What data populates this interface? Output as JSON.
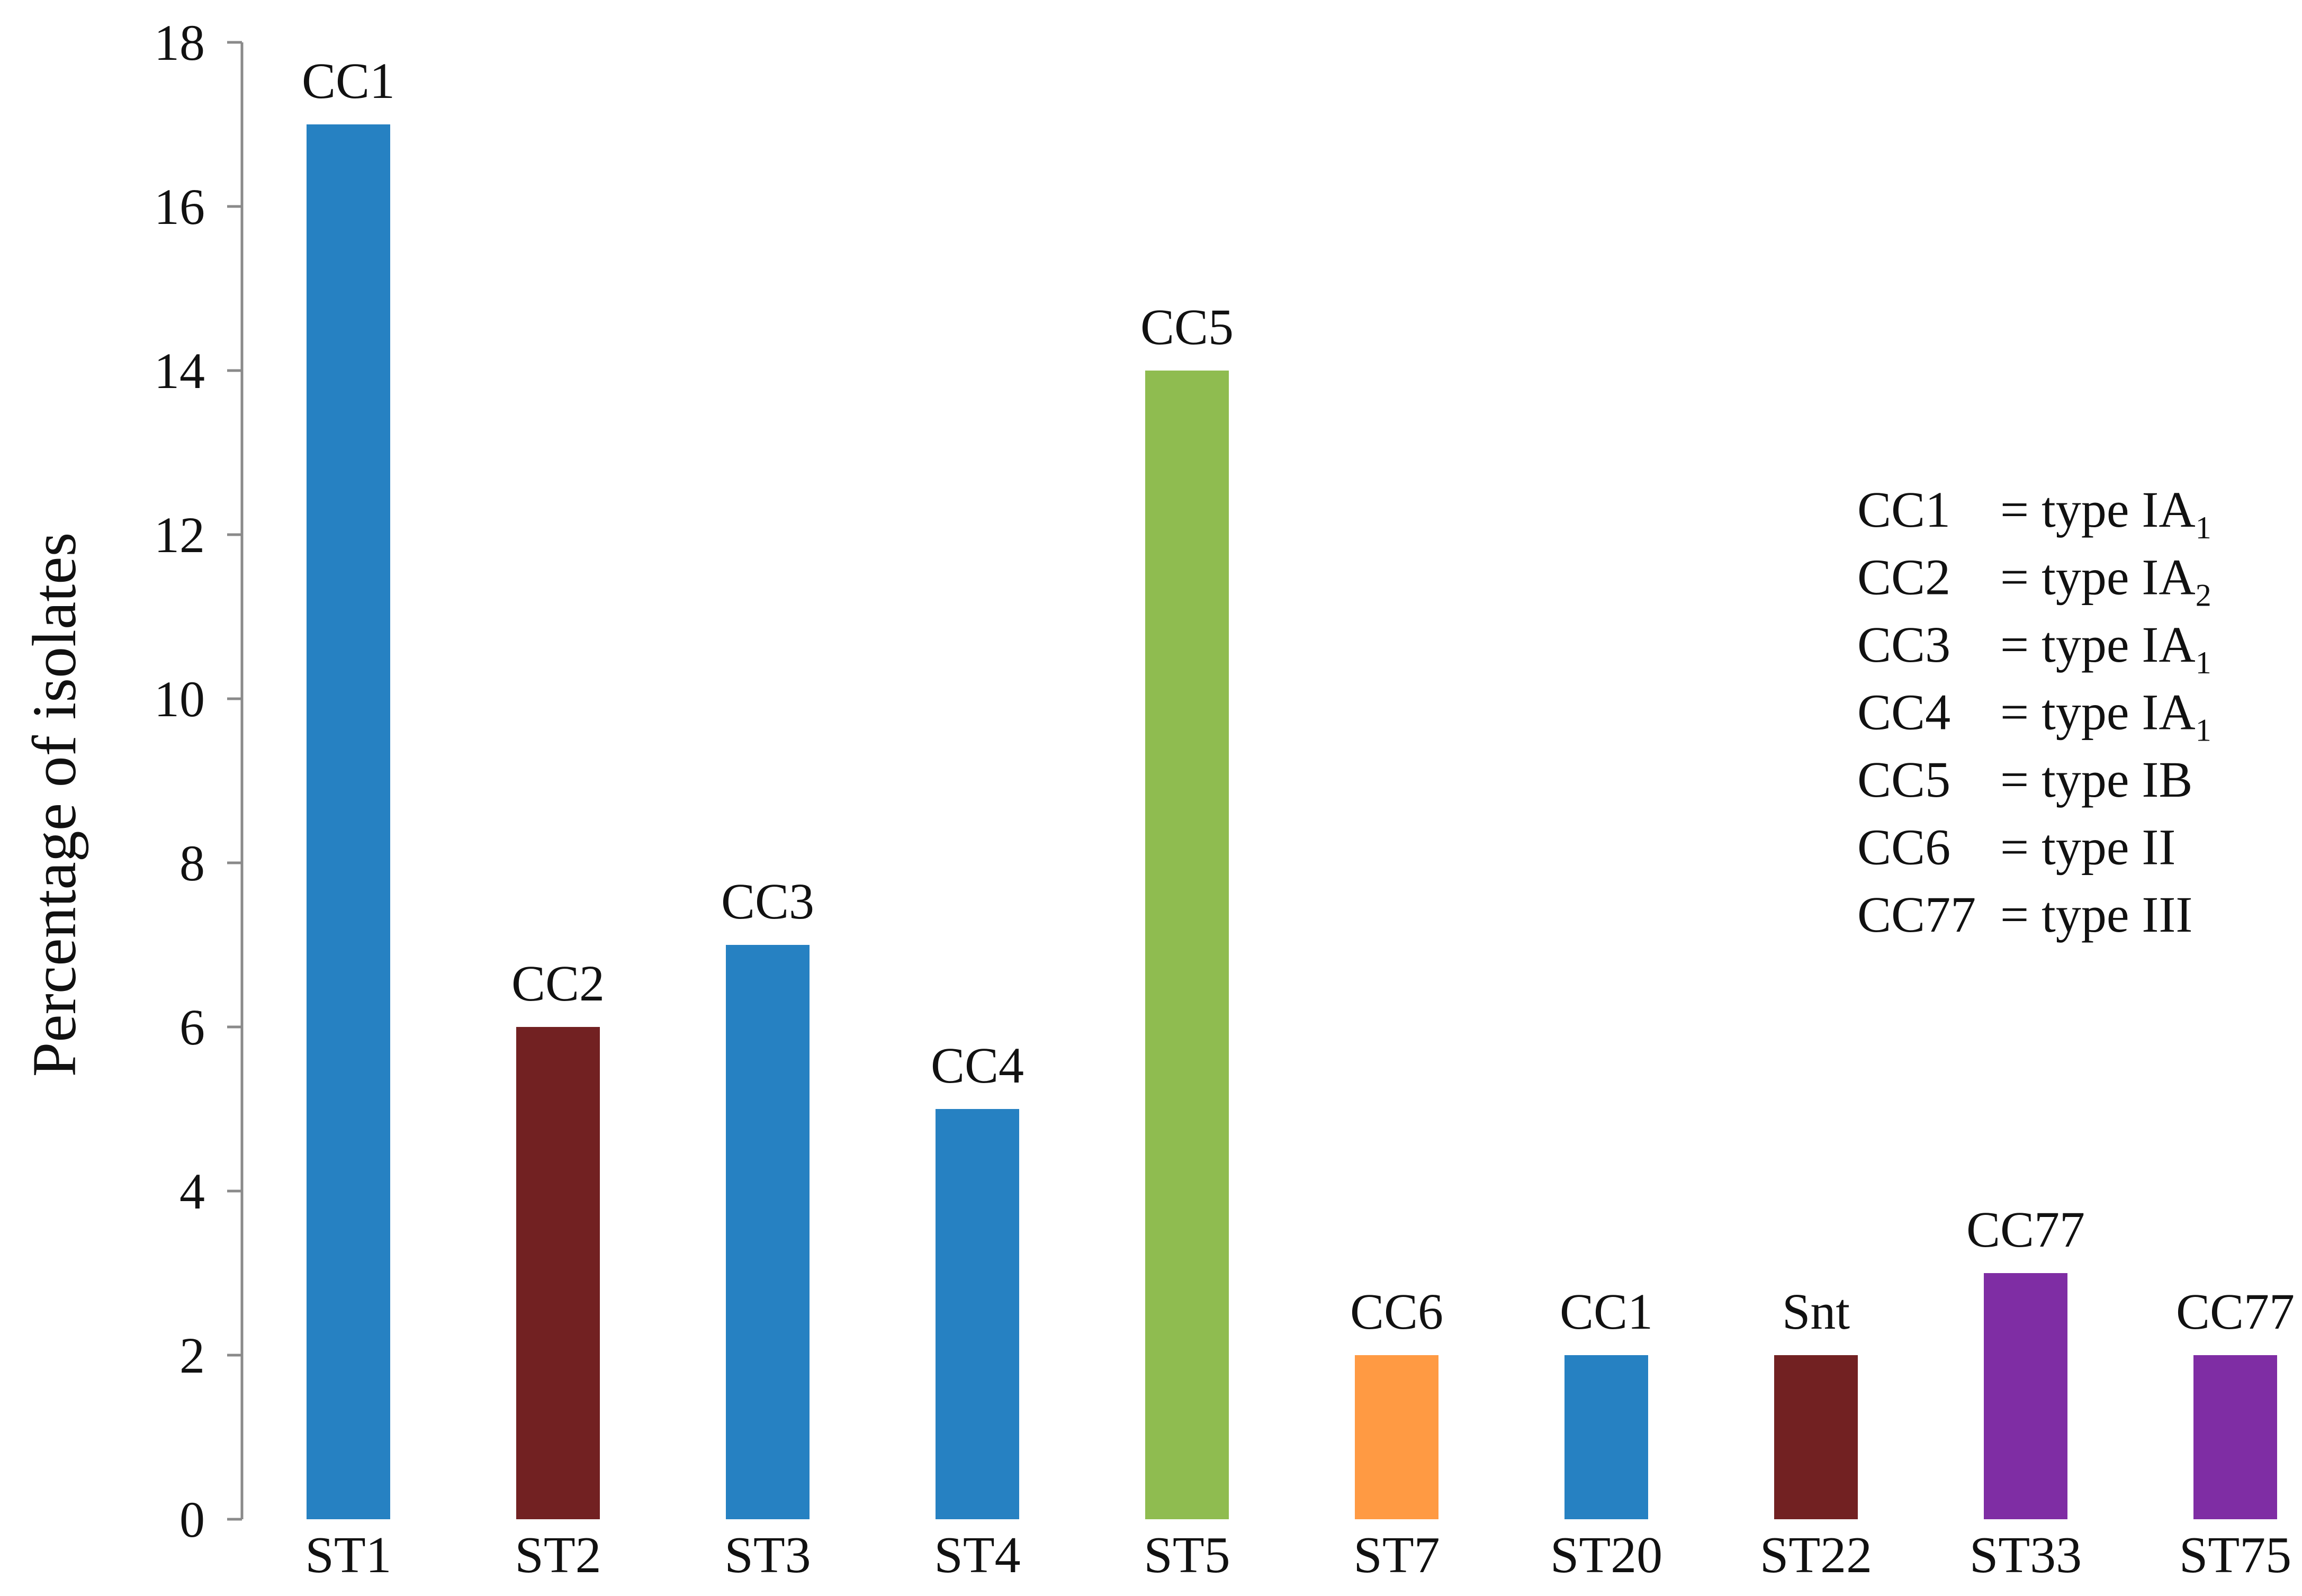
{
  "chart_data": {
    "type": "bar",
    "title": "",
    "xlabel": "",
    "ylabel": "Percentage of isolates",
    "ylim": [
      0,
      18
    ],
    "yticks": [
      0,
      2,
      4,
      6,
      8,
      10,
      12,
      14,
      16,
      18
    ],
    "grid": false,
    "categories": [
      "ST1",
      "ST2",
      "ST3",
      "ST4",
      "ST5",
      "ST7",
      "ST20",
      "ST22",
      "ST33",
      "ST75"
    ],
    "values": [
      17,
      6,
      7,
      5,
      14,
      2,
      2,
      2,
      3,
      2
    ],
    "bar_labels": [
      "CC1",
      "CC2",
      "CC3",
      "CC4",
      "CC5",
      "CC6",
      "CC1",
      "Snt",
      "CC77",
      "CC77"
    ],
    "bar_colors": [
      "#2681C2",
      "#722122",
      "#2681C2",
      "#2681C2",
      "#8FBC50",
      "#FF9A43",
      "#2681C2",
      "#722122",
      "#7F2DA4",
      "#7F2DA4"
    ],
    "legend_placement": "right",
    "legend": [
      {
        "key": "CC1",
        "eq": "= type IA",
        "sub": "1"
      },
      {
        "key": "CC2",
        "eq": "= type IA",
        "sub": "2"
      },
      {
        "key": "CC3",
        "eq": "= type IA",
        "sub": "1"
      },
      {
        "key": "CC4",
        "eq": "= type IA",
        "sub": "1"
      },
      {
        "key": "CC5",
        "eq": "= type IB",
        "sub": ""
      },
      {
        "key": "CC6",
        "eq": "= type II",
        "sub": ""
      },
      {
        "key": "CC77",
        "eq": "= type III",
        "sub": ""
      }
    ]
  }
}
